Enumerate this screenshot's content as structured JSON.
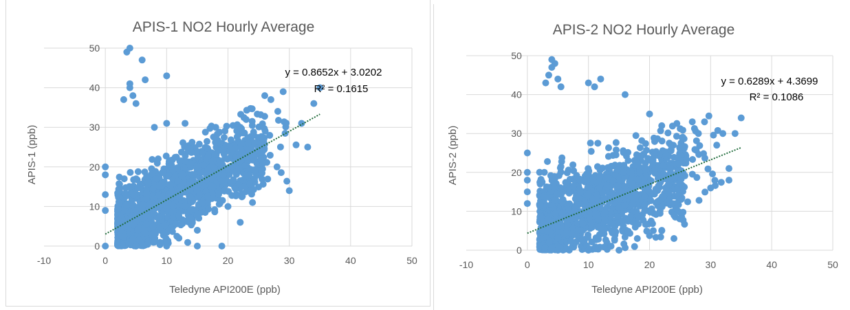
{
  "chart_data": [
    {
      "type": "scatter",
      "title": "APIS-1 NO2 Hourly Average",
      "xlabel": "Teledyne API200E (ppb)",
      "ylabel": "APIS-1 (ppb)",
      "xlim": [
        -10,
        50
      ],
      "ylim": [
        0,
        50
      ],
      "x_ticks": [
        "-10",
        "0",
        "10",
        "20",
        "30",
        "40",
        "50"
      ],
      "y_ticks": [
        "0",
        "10",
        "20",
        "30",
        "40",
        "50"
      ],
      "grid": true,
      "marker_color": "#5b9bd5",
      "trendline": {
        "slope": 0.8652,
        "intercept": 3.0202,
        "x_range": [
          0,
          35
        ],
        "color": "#1f6b3a",
        "style": "dotted"
      },
      "equation": "y = 0.8652x + 3.0202",
      "r2": "R² = 0.1615",
      "points_sample": [
        [
          0,
          20
        ],
        [
          0,
          18
        ],
        [
          0,
          13
        ],
        [
          0,
          9
        ],
        [
          0,
          0
        ],
        [
          3,
          37
        ],
        [
          3.5,
          49
        ],
        [
          4,
          50
        ],
        [
          4,
          41
        ],
        [
          4,
          40
        ],
        [
          4.5,
          38
        ],
        [
          5,
          36
        ],
        [
          6,
          47
        ],
        [
          6.5,
          42
        ],
        [
          10,
          43
        ],
        [
          8,
          30
        ],
        [
          10,
          31
        ],
        [
          13,
          31
        ],
        [
          18,
          30
        ],
        [
          22,
          30
        ],
        [
          26,
          38
        ],
        [
          27,
          37
        ],
        [
          29,
          39
        ],
        [
          32,
          31
        ],
        [
          34,
          36
        ],
        [
          35,
          40
        ],
        [
          33,
          25
        ],
        [
          28,
          20
        ],
        [
          30,
          14
        ],
        [
          24,
          11
        ],
        [
          22,
          6
        ],
        [
          20,
          10
        ],
        [
          15,
          4
        ],
        [
          12,
          2
        ],
        [
          8,
          1
        ],
        [
          5,
          0
        ],
        [
          10,
          0
        ],
        [
          15,
          0
        ],
        [
          19,
          0
        ]
      ]
    },
    {
      "type": "scatter",
      "title": "APIS-2 NO2 Hourly Average",
      "xlabel": "Teledyne API200E (ppb)",
      "ylabel": "APIS-2 (ppb)",
      "xlim": [
        -10,
        50
      ],
      "ylim": [
        0,
        50
      ],
      "x_ticks": [
        "-10",
        "0",
        "10",
        "20",
        "30",
        "40",
        "50"
      ],
      "y_ticks": [
        "0",
        "10",
        "20",
        "30",
        "40",
        "50"
      ],
      "grid": true,
      "marker_color": "#5b9bd5",
      "trendline": {
        "slope": 0.6289,
        "intercept": 4.3699,
        "x_range": [
          0,
          35
        ],
        "color": "#1f6b3a",
        "style": "dotted"
      },
      "equation": "y = 0.6289x + 4.3699",
      "r2": "R² = 0.1086",
      "points_sample": [
        [
          0,
          25
        ],
        [
          0,
          20
        ],
        [
          0,
          18
        ],
        [
          0,
          15
        ],
        [
          0,
          12
        ],
        [
          3,
          43
        ],
        [
          3.5,
          45
        ],
        [
          4,
          49
        ],
        [
          4,
          47
        ],
        [
          4.5,
          48
        ],
        [
          5,
          44
        ],
        [
          5.5,
          42
        ],
        [
          10,
          43
        ],
        [
          11,
          42
        ],
        [
          12,
          44
        ],
        [
          16,
          40
        ],
        [
          20,
          35
        ],
        [
          22,
          32
        ],
        [
          27,
          33
        ],
        [
          28,
          30
        ],
        [
          29,
          33
        ],
        [
          31,
          27
        ],
        [
          32,
          30
        ],
        [
          34,
          30
        ],
        [
          35,
          34
        ],
        [
          33,
          21
        ],
        [
          33,
          18
        ],
        [
          30,
          16
        ],
        [
          24,
          9
        ],
        [
          22,
          5
        ],
        [
          18,
          3
        ],
        [
          24,
          3
        ],
        [
          10,
          0
        ],
        [
          5,
          0
        ],
        [
          15,
          0
        ]
      ]
    }
  ]
}
